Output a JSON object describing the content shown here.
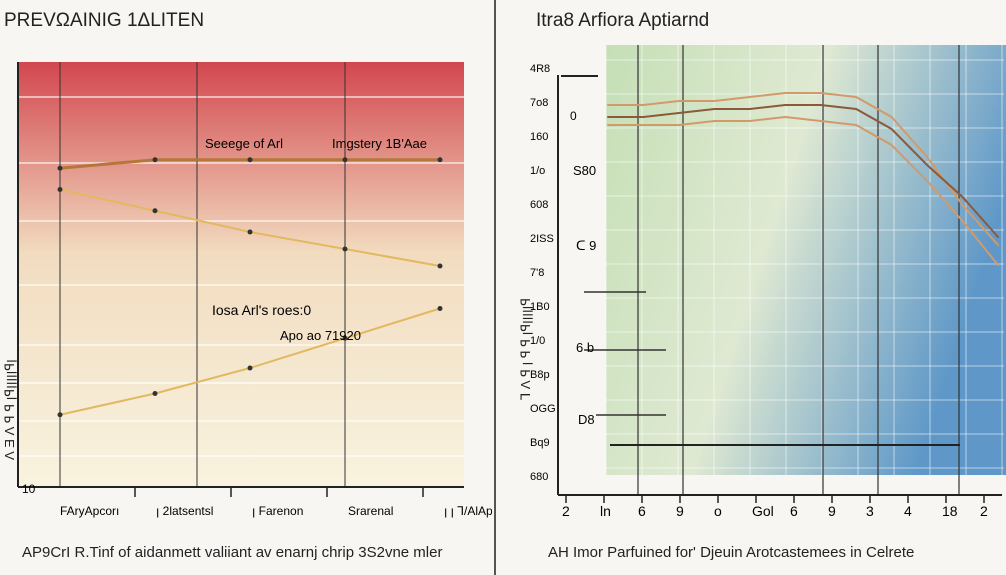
{
  "charts": [
    {
      "title": "PREVΩAINIG 1ΔLITEN",
      "ylabel": "Ʌ Ǝ Ʌ ꟼ ꟼ ꞁꟼꞁꞁꞁꞁꞁꟼꞁ",
      "y_tick": "10",
      "annotations": [
        "Seeege of Arl",
        "Imgstery 1B'Aae",
        "Iosa Arl's roes:0",
        "Apo ao 71920"
      ],
      "x_tick_labels": [
        "FAryApcorı",
        "ꞁ 2latsentsl",
        "ꞁ Farenon",
        "Srarenal",
        "ꞁ ꞁ Ꞁ/AlApone"
      ],
      "caption": "AP9CrI R.Tinf of aidanmett  valiiant av enarnj chrip 3S2vne mler",
      "colors": {
        "top": "#d2474f",
        "mid": "#f2dcc0",
        "bottom": "#f8f3df",
        "line": "#c08a3a"
      }
    },
    {
      "title": "Itra8 Arfiora Aptiarnd",
      "ylabel": "Ꞁ Ʌ ꟼ ꞁ ꟼ ꟼ ꞁꟼꞁꞁꞁꞁꞁꟼ",
      "y_tick_labels": [
        "4R8",
        "7o8",
        "160",
        "1/o",
        "608",
        "2ISS",
        "7'8",
        "1B0",
        "1/0",
        "B8p",
        "OGG",
        "Bq9",
        "680"
      ],
      "point_labels": [
        "0",
        "S80",
        "ᑕ 9",
        "6 b",
        "D8"
      ],
      "x_tick_labels": [
        "2",
        "ln",
        "6",
        "9",
        "o",
        "Gol",
        "6",
        "9",
        "3",
        "4",
        "18",
        "2"
      ],
      "caption": "AH Imor Parfuined for' Djeuin Arotcastemees in Celrete",
      "colors": {
        "green": "#c5dfb6",
        "blue": "#5f98c8",
        "line": "#d29a6a"
      }
    }
  ],
  "chart_data": [
    {
      "type": "line",
      "title": "PREVΩAINIG 1ΔLITEN",
      "xlabel": "",
      "ylabel": "Ʌ Ǝ Ʌ ꟼ ꟼ ꞁꟼꞁꞁꞁꞁꞁꟼꞁ",
      "categories": [
        "FAryApcorı",
        "ꞁ 2latsentsl",
        "ꞁ Farenon",
        "Srarenal",
        "ꞁ ꞁ Ꞁ/AlApone"
      ],
      "series": [
        {
          "values": [
            75,
            77,
            77,
            77,
            77
          ]
        },
        {
          "values": [
            70,
            65,
            60,
            56,
            52
          ]
        },
        {
          "values": [
            17,
            22,
            28,
            35,
            42
          ]
        }
      ],
      "ylim": [
        0,
        100
      ],
      "grid": true
    },
    {
      "type": "line",
      "title": "Itra8 Arfiora Aptiarnd",
      "xlabel": "",
      "ylabel": "Ꞁ Ʌ ꟼ ꞁ ꟼ ꟼ ꞁꟼꞁꞁꞁꞁꞁꟼ",
      "categories": [
        "2",
        "ln",
        "6",
        "9",
        "o",
        "Gol",
        "6",
        "9",
        "3",
        "4",
        "18",
        "2"
      ],
      "series": [
        {
          "values": [
            85,
            85,
            86,
            86,
            87,
            88,
            88,
            87,
            82,
            72,
            60,
            50
          ]
        },
        {
          "values": [
            82,
            82,
            83,
            84,
            84,
            85,
            85,
            84,
            79,
            70,
            62,
            52
          ]
        },
        {
          "values": [
            80,
            80,
            80,
            81,
            81,
            82,
            81,
            80,
            75,
            66,
            56,
            45
          ]
        }
      ],
      "ylim": [
        0,
        100
      ],
      "grid": true
    }
  ]
}
